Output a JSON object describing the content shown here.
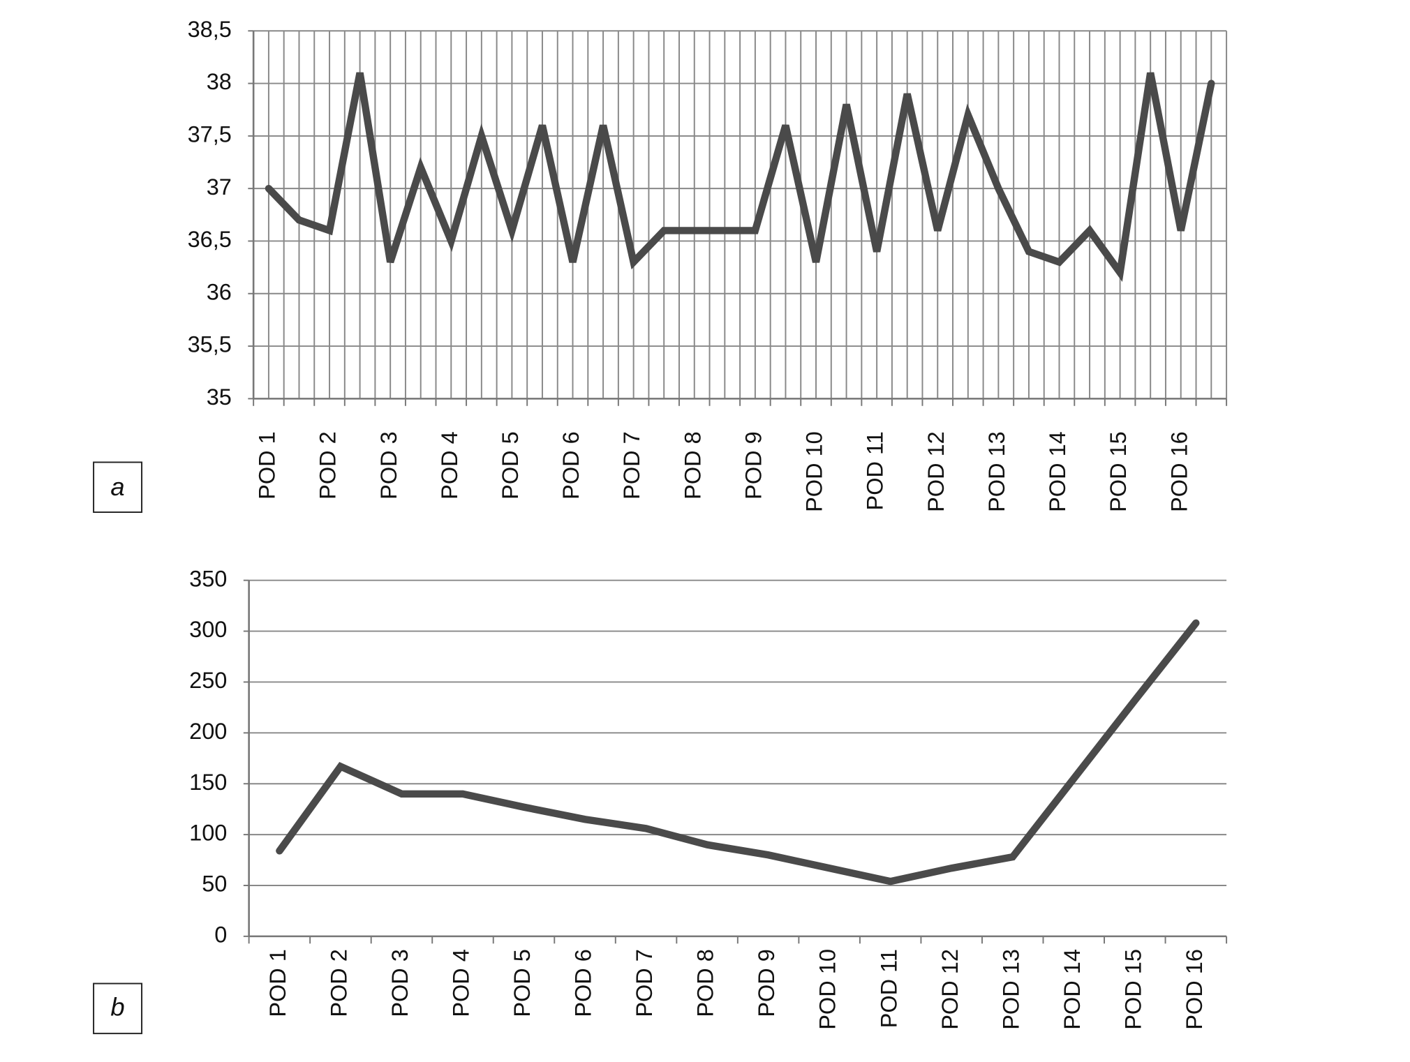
{
  "chart_data": [
    {
      "type": "line",
      "panel_label": "a",
      "color": "#4a4a4a",
      "grid": true,
      "categories": [
        "POD 1",
        null,
        "POD 2",
        null,
        "POD 3",
        null,
        "POD 4",
        null,
        "POD 5",
        null,
        "POD 6",
        null,
        "POD 7",
        null,
        "POD 8",
        null,
        "POD 9",
        null,
        "POD 10",
        null,
        "POD 11",
        null,
        "POD 12",
        null,
        "POD 13",
        null,
        "POD 14",
        null,
        "POD 15",
        null,
        "POD 16",
        null
      ],
      "values": [
        37.0,
        36.7,
        36.6,
        38.1,
        36.3,
        37.2,
        36.5,
        37.5,
        36.6,
        37.6,
        36.3,
        37.6,
        36.3,
        36.6,
        36.6,
        36.6,
        36.6,
        37.6,
        36.3,
        37.8,
        36.4,
        37.9,
        36.6,
        37.7,
        37.0,
        36.4,
        36.3,
        36.6,
        36.2,
        38.1,
        36.6,
        38.0
      ],
      "ylim": [
        35,
        38.5
      ],
      "yticks": [
        35,
        {
          "value": 35.5,
          "label": "35,5"
        },
        36,
        {
          "value": 36.5,
          "label": "36,5"
        },
        37,
        {
          "value": 37.5,
          "label": "37,5"
        },
        38,
        {
          "value": 38.5,
          "label": "38,5"
        }
      ]
    },
    {
      "type": "line",
      "panel_label": "b",
      "color": "#4a4a4a",
      "grid": true,
      "categories": [
        "POD 1",
        "POD 2",
        "POD 3",
        "POD 4",
        "POD 5",
        "POD 6",
        "POD 7",
        "POD 8",
        "POD 9",
        "POD 10",
        "POD 11",
        "POD 12",
        "POD 13",
        "POD 14",
        "POD 15",
        "POD 16"
      ],
      "values": [
        84,
        167,
        140,
        140,
        127,
        115,
        106,
        90,
        80,
        67,
        54,
        67,
        78,
        155,
        232,
        308
      ],
      "ylim": [
        0,
        350
      ],
      "yticks": [
        0,
        50,
        100,
        150,
        200,
        250,
        300,
        350
      ]
    }
  ]
}
